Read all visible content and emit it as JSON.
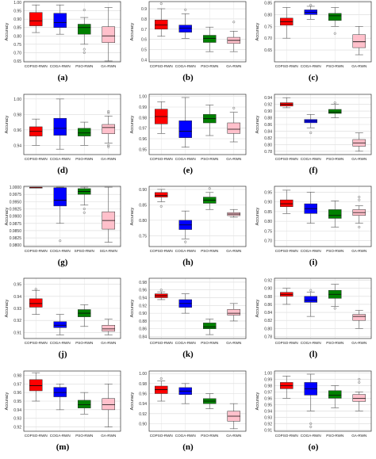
{
  "colors": {
    "COPSO-RWN": "#ff0000",
    "COGA-RWN": "#0000ff",
    "PSO-RWN": "#008000",
    "GA-RWN": "#ffc0cb",
    "median": "#0a0a0a"
  },
  "chart_data": [
    {
      "type": "box",
      "label": "(a)",
      "ylabel": "Accuracy",
      "ylim": [
        0.645,
        1.005
      ],
      "ticks": [
        "1.00",
        "0.95",
        "0.90",
        "0.85",
        "0.80",
        "0.75",
        "0.70",
        "0.65"
      ],
      "categories": [
        "COPSO-RWN",
        "COGA-RWN",
        "PSO-RWN",
        "GA-RWN"
      ],
      "boxes": [
        {
          "whislo": 0.82,
          "q1": 0.86,
          "med": 0.89,
          "q3": 0.94,
          "whishi": 0.985,
          "fliers": []
        },
        {
          "whislo": 0.81,
          "q1": 0.85,
          "med": 0.88,
          "q3": 0.935,
          "whishi": 0.985,
          "fliers": []
        },
        {
          "whislo": 0.75,
          "q1": 0.81,
          "med": 0.85,
          "q3": 0.87,
          "whishi": 0.91,
          "fliers": [
            0.72,
            0.7,
            0.955
          ]
        },
        {
          "whislo": 0.65,
          "q1": 0.76,
          "med": 0.8,
          "q3": 0.855,
          "whishi": 0.97,
          "fliers": []
        }
      ]
    },
    {
      "type": "box",
      "label": "(b)",
      "ylabel": "Accuracy",
      "ylim": [
        0.38,
        0.97
      ],
      "ticks": [
        "0.9",
        "0.8",
        "0.7",
        "0.6",
        "0.5",
        "0.4"
      ],
      "categories": [
        "COPSO-RWN",
        "COGA-RWN",
        "PSO-RWN",
        "GA-RWN"
      ],
      "boxes": [
        {
          "whislo": 0.63,
          "q1": 0.7,
          "med": 0.74,
          "q3": 0.79,
          "whishi": 0.9,
          "fliers": [
            0.95
          ]
        },
        {
          "whislo": 0.61,
          "q1": 0.67,
          "med": 0.71,
          "q3": 0.74,
          "whishi": 0.85,
          "fliers": [
            0.89
          ]
        },
        {
          "whislo": 0.48,
          "q1": 0.57,
          "med": 0.61,
          "q3": 0.64,
          "whishi": 0.72,
          "fliers": []
        },
        {
          "whislo": 0.48,
          "q1": 0.56,
          "med": 0.59,
          "q3": 0.62,
          "whishi": 0.68,
          "fliers": [
            0.77
          ]
        }
      ]
    },
    {
      "type": "box",
      "label": "(c)",
      "ylabel": "Accuracy",
      "ylim": [
        0.6,
        0.855
      ],
      "ticks": [
        "0.85",
        "0.80",
        "0.75",
        "0.70",
        "0.65"
      ],
      "categories": [
        "COPSO-RWN",
        "COGA-RWN",
        "PSO-RWN",
        "GA-RWN"
      ],
      "boxes": [
        {
          "whislo": 0.7,
          "q1": 0.755,
          "med": 0.77,
          "q3": 0.785,
          "whishi": 0.83,
          "fliers": []
        },
        {
          "whislo": 0.78,
          "q1": 0.8,
          "med": 0.81,
          "q3": 0.82,
          "whishi": 0.835,
          "fliers": [
            0.84
          ]
        },
        {
          "whislo": 0.75,
          "q1": 0.775,
          "med": 0.795,
          "q3": 0.805,
          "whishi": 0.83,
          "fliers": [
            0.72
          ]
        },
        {
          "whislo": 0.63,
          "q1": 0.66,
          "med": 0.685,
          "q3": 0.715,
          "whishi": 0.75,
          "fliers": []
        }
      ]
    },
    {
      "type": "box",
      "label": "(d)",
      "ylabel": "Accuracy",
      "ylim": [
        0.928,
        1.006
      ],
      "ticks": [
        "1.00",
        "0.98",
        "0.96",
        "0.94"
      ],
      "categories": [
        "COPSO-RWN",
        "COGA-RWN",
        "PSO-RWN",
        "GA-RWN"
      ],
      "boxes": [
        {
          "whislo": 0.94,
          "q1": 0.952,
          "med": 0.958,
          "q3": 0.964,
          "whishi": 0.974,
          "fliers": []
        },
        {
          "whislo": 0.935,
          "q1": 0.953,
          "med": 0.962,
          "q3": 0.975,
          "whishi": 1.0,
          "fliers": []
        },
        {
          "whislo": 0.94,
          "q1": 0.952,
          "med": 0.956,
          "q3": 0.962,
          "whishi": 0.97,
          "fliers": []
        },
        {
          "whislo": 0.943,
          "q1": 0.955,
          "med": 0.963,
          "q3": 0.967,
          "whishi": 0.978,
          "fliers": [
            0.982,
            0.984,
            0.938,
            0.94
          ]
        }
      ]
    },
    {
      "type": "box",
      "label": "(e)",
      "ylabel": "Accuracy",
      "ylim": [
        0.945,
        1.002
      ],
      "ticks": [
        "1.00",
        "0.99",
        "0.98",
        "0.97",
        "0.96",
        "0.95"
      ],
      "categories": [
        "COPSO-RWN",
        "COGA-RWN",
        "PSO-RWN",
        "GA-RWN"
      ],
      "boxes": [
        {
          "whislo": 0.965,
          "q1": 0.974,
          "med": 0.981,
          "q3": 0.988,
          "whishi": 0.995,
          "fliers": []
        },
        {
          "whislo": 0.952,
          "q1": 0.961,
          "med": 0.967,
          "q3": 0.977,
          "whishi": 0.999,
          "fliers": []
        },
        {
          "whislo": 0.963,
          "q1": 0.975,
          "med": 0.979,
          "q3": 0.983,
          "whishi": 0.992,
          "fliers": []
        },
        {
          "whislo": 0.957,
          "q1": 0.965,
          "med": 0.969,
          "q3": 0.975,
          "whishi": 0.985,
          "fliers": [
            0.989
          ]
        }
      ]
    },
    {
      "type": "box",
      "label": "(f)",
      "ylabel": "Accuracy",
      "ylim": [
        0.77,
        0.95
      ],
      "ticks": [
        "0.94",
        "0.92",
        "0.90",
        "0.88",
        "0.86",
        "0.84",
        "0.82",
        "0.80",
        "0.78"
      ],
      "categories": [
        "COPSO-RWN",
        "COGA-RWN",
        "PSO-RWN",
        "GA-RWN"
      ],
      "boxes": [
        {
          "whislo": 0.91,
          "q1": 0.915,
          "med": 0.92,
          "q3": 0.925,
          "whishi": 0.94,
          "fliers": []
        },
        {
          "whislo": 0.85,
          "q1": 0.865,
          "med": 0.87,
          "q3": 0.875,
          "whishi": 0.89,
          "fliers": [
            0.835
          ]
        },
        {
          "whislo": 0.88,
          "q1": 0.893,
          "med": 0.897,
          "q3": 0.905,
          "whishi": 0.92,
          "fliers": [
            0.925
          ]
        },
        {
          "whislo": 0.78,
          "q1": 0.795,
          "med": 0.805,
          "q3": 0.815,
          "whishi": 0.835,
          "fliers": []
        }
      ]
    },
    {
      "type": "box",
      "label": "(g)",
      "ylabel": "Accuracy",
      "ylim": [
        0.9795,
        1.0003
      ],
      "ticks": [
        "1.0000",
        "0.9975",
        "0.9950",
        "0.9925",
        "0.9900",
        "0.9875",
        "0.9850",
        "0.9825",
        "0.9800"
      ],
      "categories": [
        "COPSO-RWN",
        "COGA-RWN",
        "SPSO-RWN",
        "SGA-RWN"
      ],
      "boxes": [
        {
          "whislo": 0.99995,
          "q1": 0.99995,
          "med": 0.99995,
          "q3": 0.99995,
          "whishi": 0.99995,
          "fliers": []
        },
        {
          "whislo": 0.9875,
          "q1": 0.9935,
          "med": 0.9955,
          "q3": 0.9998,
          "whishi": 1.0,
          "fliers": [
            0.9815
          ]
        },
        {
          "whislo": 0.9938,
          "q1": 0.9975,
          "med": 0.9985,
          "q3": 0.9995,
          "whishi": 1.0,
          "fliers": [
            0.9925,
            0.9912
          ]
        },
        {
          "whislo": 0.981,
          "q1": 0.9855,
          "med": 0.9885,
          "q3": 0.9915,
          "whishi": 1.0,
          "fliers": []
        }
      ]
    },
    {
      "type": "box",
      "label": "(h)",
      "ylabel": "Accuracy",
      "ylim": [
        0.715,
        0.91
      ],
      "ticks": [
        "0.90",
        "0.85",
        "0.80",
        "0.75"
      ],
      "categories": [
        "COPSO-RWN",
        "COGA-RWN",
        "PSO-RWN",
        "GA-RWN"
      ],
      "boxes": [
        {
          "whislo": 0.86,
          "q1": 0.875,
          "med": 0.88,
          "q3": 0.89,
          "whishi": 0.9,
          "fliers": [
            0.845
          ]
        },
        {
          "whislo": 0.74,
          "q1": 0.77,
          "med": 0.785,
          "q3": 0.8,
          "whishi": 0.83,
          "fliers": [
            0.73
          ]
        },
        {
          "whislo": 0.835,
          "q1": 0.855,
          "med": 0.865,
          "q3": 0.875,
          "whishi": 0.89,
          "fliers": [
            0.903
          ]
        },
        {
          "whislo": 0.81,
          "q1": 0.815,
          "med": 0.82,
          "q3": 0.825,
          "whishi": 0.835,
          "fliers": []
        }
      ]
    },
    {
      "type": "box",
      "label": "(i)",
      "ylabel": "Accuracy",
      "ylim": [
        0.67,
        0.98
      ],
      "ticks": [
        "0.95",
        "0.90",
        "0.85",
        "0.80",
        "0.75",
        "0.70"
      ],
      "categories": [
        "COPSO-RWN",
        "COGA-RWN",
        "PSO-RWN",
        "GA-RWN"
      ],
      "boxes": [
        {
          "whislo": 0.84,
          "q1": 0.875,
          "med": 0.89,
          "q3": 0.91,
          "whishi": 0.96,
          "fliers": []
        },
        {
          "whislo": 0.79,
          "q1": 0.84,
          "med": 0.865,
          "q3": 0.89,
          "whishi": 0.95,
          "fliers": []
        },
        {
          "whislo": 0.77,
          "q1": 0.815,
          "med": 0.83,
          "q3": 0.86,
          "whishi": 0.905,
          "fliers": []
        },
        {
          "whislo": 0.79,
          "q1": 0.83,
          "med": 0.845,
          "q3": 0.86,
          "whishi": 0.88,
          "fliers": [
            0.925,
            0.91,
            0.77
          ]
        }
      ]
    },
    {
      "type": "box",
      "label": "(j)",
      "ylabel": "Accuracy",
      "ylim": [
        0.905,
        0.955
      ],
      "ticks": [
        "0.95",
        "0.94",
        "0.93",
        "0.92",
        "0.91"
      ],
      "categories": [
        "COPSO-RWN",
        "COGA-RWN",
        "PSO-RWN",
        "GA-RWN"
      ],
      "boxes": [
        {
          "whislo": 0.925,
          "q1": 0.931,
          "med": 0.934,
          "q3": 0.938,
          "whishi": 0.945,
          "fliers": [
            0.946
          ]
        },
        {
          "whislo": 0.908,
          "q1": 0.914,
          "med": 0.916,
          "q3": 0.919,
          "whishi": 0.925,
          "fliers": []
        },
        {
          "whislo": 0.915,
          "q1": 0.923,
          "med": 0.926,
          "q3": 0.929,
          "whishi": 0.933,
          "fliers": []
        },
        {
          "whislo": 0.908,
          "q1": 0.911,
          "med": 0.913,
          "q3": 0.916,
          "whishi": 0.921,
          "fliers": []
        }
      ]
    },
    {
      "type": "box",
      "label": "(k)",
      "ylabel": "Accuracy",
      "ylim": [
        0.835,
        0.99
      ],
      "ticks": [
        "0.98",
        "0.96",
        "0.94",
        "0.92",
        "0.90",
        "0.88",
        "0.86",
        "0.84"
      ],
      "categories": [
        "COPSO-RWN",
        "COGA-RWN",
        "PSO-RWN",
        "GA-RWN"
      ],
      "boxes": [
        {
          "whislo": 0.935,
          "q1": 0.94,
          "med": 0.945,
          "q3": 0.95,
          "whishi": 0.955,
          "fliers": [
            0.96
          ]
        },
        {
          "whislo": 0.9,
          "q1": 0.915,
          "med": 0.925,
          "q3": 0.935,
          "whishi": 0.95,
          "fliers": []
        },
        {
          "whislo": 0.845,
          "q1": 0.86,
          "med": 0.865,
          "q3": 0.875,
          "whishi": 0.885,
          "fliers": []
        },
        {
          "whislo": 0.88,
          "q1": 0.895,
          "med": 0.9,
          "q3": 0.91,
          "whishi": 0.925,
          "fliers": []
        }
      ]
    },
    {
      "type": "box",
      "label": "(l)",
      "ylabel": "Accuracy",
      "ylim": [
        0.775,
        0.925
      ],
      "ticks": [
        "0.92",
        "0.90",
        "0.88",
        "0.86",
        "0.84",
        "0.82",
        "0.80",
        "0.78"
      ],
      "categories": [
        "COPSO-RWN",
        "COGA-RWN",
        "PSO-RWN",
        "GA-RWN"
      ],
      "boxes": [
        {
          "whislo": 0.86,
          "q1": 0.88,
          "med": 0.885,
          "q3": 0.89,
          "whishi": 0.9,
          "fliers": []
        },
        {
          "whislo": 0.83,
          "q1": 0.865,
          "med": 0.87,
          "q3": 0.88,
          "whishi": 0.89,
          "fliers": [
            0.895
          ]
        },
        {
          "whislo": 0.855,
          "q1": 0.875,
          "med": 0.885,
          "q3": 0.895,
          "whishi": 0.91,
          "fliers": [
            0.85
          ]
        },
        {
          "whislo": 0.8,
          "q1": 0.82,
          "med": 0.83,
          "q3": 0.835,
          "whishi": 0.845,
          "fliers": []
        }
      ]
    },
    {
      "type": "box",
      "label": "(m)",
      "ylabel": "Accuracy",
      "ylim": [
        0.915,
        0.985
      ],
      "ticks": [
        "0.98",
        "0.97",
        "0.96",
        "0.95",
        "0.94",
        "0.93",
        "0.92"
      ],
      "categories": [
        "COPSO-RWN",
        "COGA-RWN",
        "PSO-RWN",
        "GA-RWN"
      ],
      "boxes": [
        {
          "whislo": 0.95,
          "q1": 0.962,
          "med": 0.968,
          "q3": 0.975,
          "whishi": 0.983,
          "fliers": []
        },
        {
          "whislo": 0.94,
          "q1": 0.955,
          "med": 0.96,
          "q3": 0.966,
          "whishi": 0.97,
          "fliers": []
        },
        {
          "whislo": 0.935,
          "q1": 0.942,
          "med": 0.946,
          "q3": 0.951,
          "whishi": 0.96,
          "fliers": []
        },
        {
          "whislo": 0.92,
          "q1": 0.94,
          "med": 0.946,
          "q3": 0.953,
          "whishi": 0.97,
          "fliers": []
        }
      ]
    },
    {
      "type": "box",
      "label": "(n)",
      "ylabel": "Accuracy",
      "ylim": [
        0.885,
        1.005
      ],
      "ticks": [
        "1.00",
        "0.98",
        "0.96",
        "0.94",
        "0.92",
        "0.90"
      ],
      "categories": [
        "COPSO-RWN",
        "COGA-RWN",
        "PSO-RWN",
        "GA-RWN"
      ],
      "boxes": [
        {
          "whislo": 0.945,
          "q1": 0.96,
          "med": 0.968,
          "q3": 0.975,
          "whishi": 0.985,
          "fliers": [
            0.99
          ]
        },
        {
          "whislo": 0.94,
          "q1": 0.958,
          "med": 0.965,
          "q3": 0.972,
          "whishi": 0.98,
          "fliers": []
        },
        {
          "whislo": 0.93,
          "q1": 0.94,
          "med": 0.945,
          "q3": 0.95,
          "whishi": 0.96,
          "fliers": []
        },
        {
          "whislo": 0.89,
          "q1": 0.905,
          "med": 0.915,
          "q3": 0.925,
          "whishi": 0.94,
          "fliers": []
        }
      ]
    },
    {
      "type": "box",
      "label": "(o)",
      "ylabel": "Accuracy",
      "ylim": [
        0.908,
        1.003
      ],
      "ticks": [
        "1.00",
        "0.99",
        "0.98",
        "0.97",
        "0.96",
        "0.95",
        "0.94",
        "0.93",
        "0.92",
        "0.91"
      ],
      "categories": [
        "COPSO-RWN",
        "COGA-RWN",
        "PSO-RWN",
        "GA-RWN"
      ],
      "boxes": [
        {
          "whislo": 0.96,
          "q1": 0.975,
          "med": 0.98,
          "q3": 0.985,
          "whishi": 0.995,
          "fliers": []
        },
        {
          "whislo": 0.94,
          "q1": 0.965,
          "med": 0.975,
          "q3": 0.985,
          "whishi": 0.998,
          "fliers": [
            0.92,
            0.915
          ]
        },
        {
          "whislo": 0.945,
          "q1": 0.96,
          "med": 0.965,
          "q3": 0.972,
          "whishi": 0.98,
          "fliers": []
        },
        {
          "whislo": 0.94,
          "q1": 0.955,
          "med": 0.96,
          "q3": 0.966,
          "whishi": 0.97,
          "fliers": [
            0.985,
            0.99
          ]
        }
      ]
    }
  ]
}
